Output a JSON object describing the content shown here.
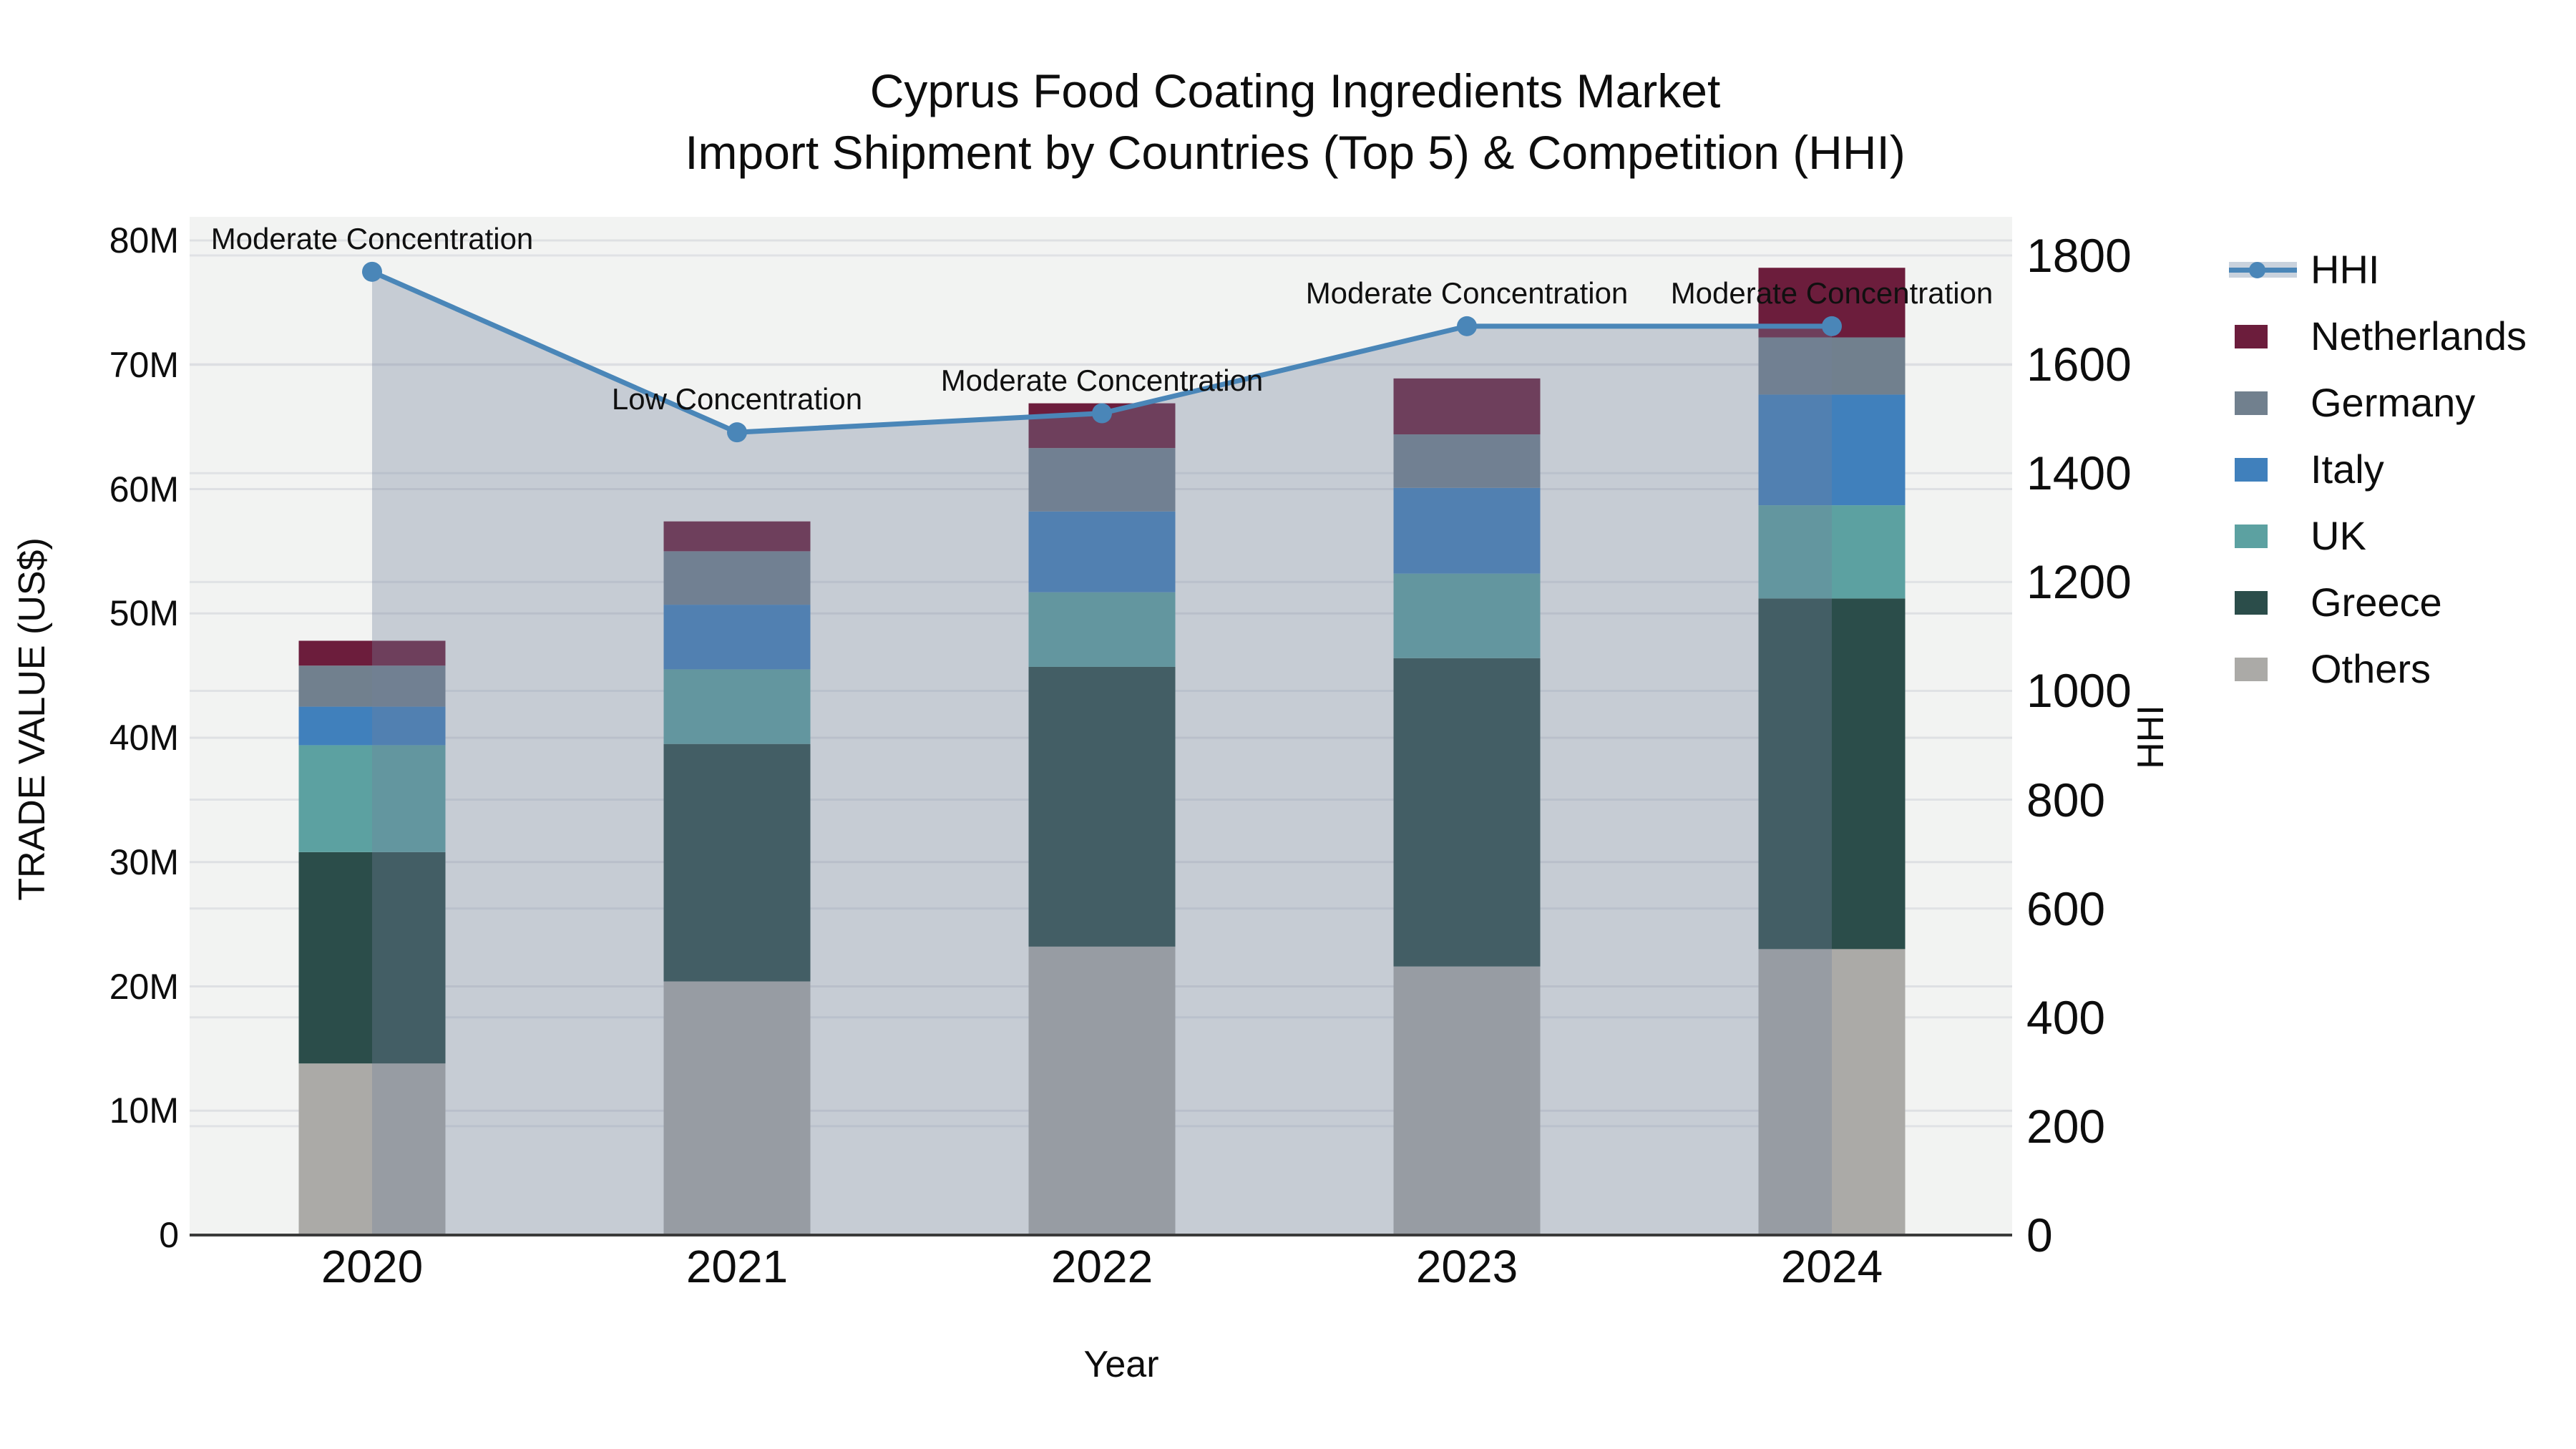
{
  "title": {
    "line1": "Cyprus Food Coating Ingredients Market",
    "line2": "Import Shipment by Countries (Top 5) & Competition (HHI)"
  },
  "axes": {
    "x_label": "Year",
    "y_left_label": "TRADE VALUE (US$)",
    "y_right_label": "HHI",
    "x_ticks": [
      "2020",
      "2021",
      "2022",
      "2023",
      "2024"
    ],
    "y_left_ticks": [
      "0",
      "10M",
      "20M",
      "30M",
      "40M",
      "50M",
      "60M",
      "70M",
      "80M"
    ],
    "y_right_ticks": [
      "0",
      "200",
      "400",
      "600",
      "800",
      "1000",
      "1200",
      "1400",
      "1600",
      "1800"
    ]
  },
  "legend": {
    "items": [
      {
        "label": "HHI",
        "type": "line",
        "color": "#4A86B8"
      },
      {
        "label": "Netherlands",
        "type": "patch",
        "color": "#6C1D3C"
      },
      {
        "label": "Germany",
        "type": "patch",
        "color": "#71808E"
      },
      {
        "label": "Italy",
        "type": "patch",
        "color": "#4080BC"
      },
      {
        "label": "UK",
        "type": "patch",
        "color": "#5CA1A1"
      },
      {
        "label": "Greece",
        "type": "patch",
        "color": "#2B4D4A"
      },
      {
        "label": "Others",
        "type": "patch",
        "color": "#ABAAA7"
      }
    ]
  },
  "chart_data": {
    "type": "combo: stacked bar (left axis) + line with area fill (right axis)",
    "title": "Cyprus Food Coating Ingredients Market — Import Shipment by Countries (Top 5) & Competition (HHI)",
    "x": [
      2020,
      2021,
      2022,
      2023,
      2024
    ],
    "bar_value_unit": "million US$",
    "series_bottom_to_top": [
      {
        "name": "Others",
        "color": "#ABAAA7",
        "values": [
          13.8,
          20.4,
          23.2,
          21.6,
          23.0
        ]
      },
      {
        "name": "Greece",
        "color": "#2B4D4A",
        "values": [
          17.0,
          19.1,
          22.5,
          24.8,
          28.2
        ]
      },
      {
        "name": "UK",
        "color": "#5CA1A1",
        "values": [
          8.6,
          6.0,
          6.0,
          6.8,
          7.5
        ]
      },
      {
        "name": "Italy",
        "color": "#4080BC",
        "values": [
          3.1,
          5.2,
          6.5,
          6.9,
          8.9
        ]
      },
      {
        "name": "Germany",
        "color": "#71808E",
        "values": [
          3.3,
          4.3,
          5.1,
          4.3,
          4.6
        ]
      },
      {
        "name": "Netherlands",
        "color": "#6C1D3C",
        "values": [
          2.0,
          2.4,
          3.6,
          4.5,
          5.6
        ]
      }
    ],
    "bar_totals_millions": [
      47.8,
      57.4,
      66.9,
      68.9,
      77.8
    ],
    "line_series": {
      "name": "HHI",
      "color": "#4A86B8",
      "area_fill": "rgba(115,128,155,0.34)",
      "values": [
        1770,
        1475,
        1510,
        1670,
        1670
      ]
    },
    "annotations": [
      {
        "x": 2020,
        "text": "Moderate Concentration"
      },
      {
        "x": 2021,
        "text": "Low Concentration"
      },
      {
        "x": 2022,
        "text": "Moderate Concentration"
      },
      {
        "x": 2023,
        "text": "Moderate Concentration"
      },
      {
        "x": 2024,
        "text": "Moderate Concentration"
      }
    ],
    "y_left_axis": {
      "label": "TRADE VALUE (US$)",
      "min": 0,
      "max": 80000000,
      "tick_step": 10000000
    },
    "y_right_axis": {
      "label": "HHI",
      "min": 0,
      "max": 1800,
      "tick_step": 200
    },
    "grid": true,
    "legend_position": "right"
  },
  "colors": {
    "page_bg": "#FFFFFF",
    "plot_bg": "#F2F3F2",
    "gridline": "#DCDEE2",
    "bottom_spine": "#3A3A3A",
    "text": "#111111",
    "hhi_legend_band": "#C9D2DD"
  }
}
